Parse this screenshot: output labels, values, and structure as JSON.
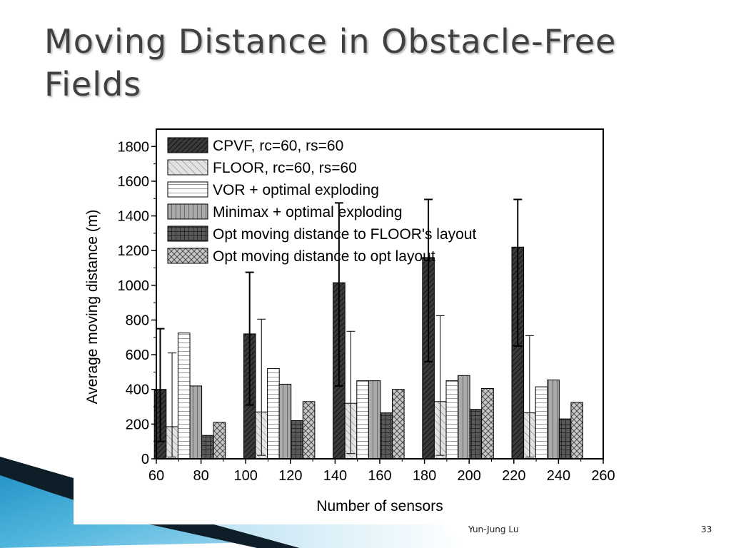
{
  "slide": {
    "title": "Moving Distance in Obstacle-Free Fields",
    "footer_author": "Yun-Jung Lu",
    "page_number": "33"
  },
  "chart_data": {
    "type": "bar",
    "xlabel": "Number of sensors",
    "ylabel": "Average moving distance (m)",
    "xlim": [
      60,
      260
    ],
    "ylim": [
      0,
      1900
    ],
    "x_ticks": [
      60,
      80,
      100,
      120,
      140,
      160,
      180,
      200,
      220,
      240,
      260
    ],
    "y_ticks": [
      0,
      200,
      400,
      600,
      800,
      1000,
      1200,
      1400,
      1600,
      1800
    ],
    "groups_x": [
      75,
      115,
      155,
      195,
      235
    ],
    "legend_position": "top-left",
    "grid": false,
    "series": [
      {
        "name": "CPVF, rc=60, rs=60",
        "values": [
          400,
          720,
          1015,
          1160,
          1220
        ],
        "err_low": [
          100,
          310,
          420,
          560,
          650
        ],
        "err_high": [
          750,
          1075,
          1475,
          1495,
          1495
        ]
      },
      {
        "name": "FLOOR, rc=60, rs=60",
        "values": [
          185,
          270,
          320,
          330,
          265
        ],
        "err_low": [
          10,
          20,
          30,
          20,
          10
        ],
        "err_high": [
          610,
          805,
          735,
          825,
          710
        ]
      },
      {
        "name": "VOR + optimal exploding",
        "values": [
          725,
          520,
          450,
          450,
          415
        ]
      },
      {
        "name": "Minimax + optimal exploding",
        "values": [
          420,
          430,
          450,
          480,
          455
        ]
      },
      {
        "name": "Opt moving distance to FLOOR's layout",
        "values": [
          135,
          220,
          265,
          285,
          230
        ]
      },
      {
        "name": "Opt moving distance to opt layout",
        "values": [
          210,
          330,
          400,
          405,
          325
        ]
      }
    ]
  }
}
